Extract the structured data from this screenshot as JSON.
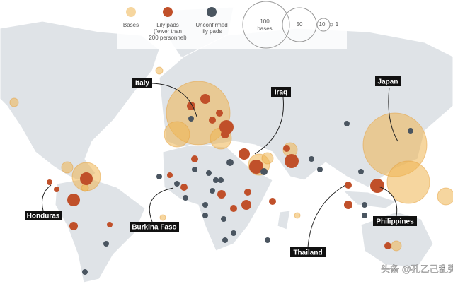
{
  "legend": {
    "items": [
      {
        "label": [
          "Bases"
        ]
      },
      {
        "label": [
          "Lily pads",
          "(fewer than",
          "200 personnel)"
        ]
      },
      {
        "label": [
          "Unconfirmed",
          "lily pads"
        ]
      }
    ],
    "sizes": [
      [
        "100",
        "bases"
      ],
      [
        "50"
      ],
      [
        "10"
      ],
      [
        "1"
      ]
    ]
  },
  "labels": [
    "Italy",
    "Iraq",
    "Japan",
    "Honduras",
    "Burkina Faso",
    "Thailand",
    "Philippines"
  ],
  "watermark": "头条 @孔乙己乱弹"
}
